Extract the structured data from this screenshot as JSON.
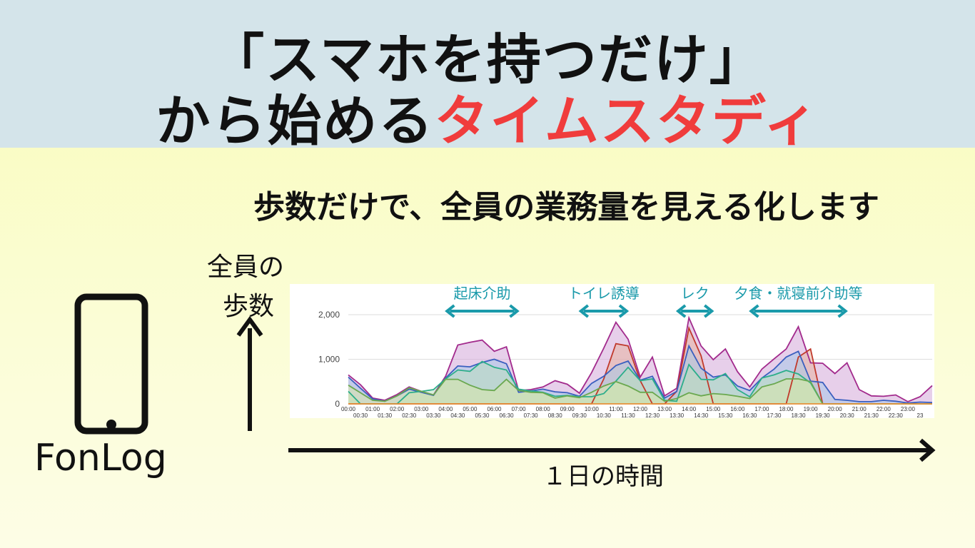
{
  "header": {
    "line1": "「スマホを持つだけ」",
    "line2_prefix": "から始める",
    "line2_accent": "タイムスタディ"
  },
  "subtitle": "歩数だけで、全員の業務量を見える化します",
  "y_axis_label": [
    "全員の",
    "歩数"
  ],
  "x_axis_label": "１日の時間",
  "device_label": "FonLog",
  "colors": {
    "header_bg": "#d4e4ea",
    "accent": "#f03c3c",
    "annotation": "#1a9aaa"
  },
  "annotations": [
    {
      "label": "起床介助",
      "from": "04:00",
      "to": "07:00"
    },
    {
      "label": "トイレ誘導",
      "from": "09:30",
      "to": "11:30"
    },
    {
      "label": "レク",
      "from": "13:30",
      "to": "15:00"
    },
    {
      "label": "夕食・就寝前介助等",
      "from": "16:30",
      "to": "20:30"
    }
  ],
  "chart_data": {
    "type": "area",
    "title": "",
    "xlabel": "１日の時間",
    "ylabel": "全員の歩数",
    "ylim": [
      0,
      2400
    ],
    "yticks": [
      "2,000",
      "1,000",
      "0"
    ],
    "ytick_values": [
      2000,
      1000,
      0
    ],
    "x_top_ticks": [
      "00:00",
      "01:00",
      "02:00",
      "03:00",
      "04:00",
      "05:00",
      "06:00",
      "07:00",
      "08:00",
      "09:00",
      "10:00",
      "11:00",
      "12:00",
      "13:00",
      "14:00",
      "15:00",
      "16:00",
      "17:00",
      "18:00",
      "19:00",
      "20:00",
      "21:00",
      "22:00",
      "23:00"
    ],
    "x_bottom_ticks": [
      "00:30",
      "01:30",
      "02:30",
      "03:30",
      "04:30",
      "05:30",
      "06:30",
      "07:30",
      "08:30",
      "09:30",
      "10:30",
      "11:30",
      "12:30",
      "13:30",
      "14:30",
      "15:30",
      "16:30",
      "17:30",
      "18:30",
      "19:30",
      "20:30",
      "21:30",
      "22:30",
      "23"
    ],
    "grid": true,
    "series": [
      {
        "color": "#a22a8c",
        "fill": "#d4a8d8",
        "values": [
          650,
          430,
          130,
          80,
          210,
          380,
          280,
          200,
          620,
          1320,
          1380,
          1430,
          1180,
          1280,
          300,
          320,
          380,
          520,
          440,
          240,
          700,
          1250,
          1830,
          1450,
          600,
          1050,
          180,
          350,
          1930,
          1300,
          990,
          1230,
          720,
          380,
          780,
          1010,
          1230,
          1730,
          920,
          910,
          680,
          920,
          320,
          180,
          170,
          200,
          50,
          160,
          410
        ]
      },
      {
        "color": "#c0392b",
        "fill": "#e8b4a0",
        "values": [
          0,
          0,
          0,
          0,
          0,
          0,
          0,
          0,
          0,
          0,
          0,
          0,
          0,
          0,
          0,
          0,
          0,
          0,
          0,
          0,
          0,
          560,
          1350,
          1300,
          520,
          0,
          0,
          280,
          1700,
          1080,
          0,
          0,
          0,
          0,
          0,
          0,
          0,
          1050,
          1230,
          0,
          0,
          0,
          0,
          0,
          0,
          0,
          0,
          0,
          0
        ]
      },
      {
        "color": "#3a5fbf",
        "fill": "#a8c8e8",
        "values": [
          600,
          350,
          110,
          60,
          180,
          330,
          260,
          190,
          580,
          850,
          830,
          930,
          1000,
          900,
          260,
          290,
          330,
          270,
          250,
          170,
          460,
          620,
          860,
          960,
          530,
          620,
          130,
          280,
          1300,
          800,
          600,
          650,
          400,
          300,
          580,
          780,
          1050,
          1180,
          510,
          480,
          100,
          80,
          50,
          50,
          80,
          60,
          20,
          40,
          30
        ]
      },
      {
        "color": "#2cae8a",
        "fill": "#b8e0c0",
        "values": [
          280,
          0,
          0,
          0,
          0,
          250,
          280,
          320,
          560,
          760,
          730,
          950,
          820,
          760,
          330,
          290,
          260,
          170,
          190,
          160,
          160,
          230,
          510,
          820,
          520,
          560,
          80,
          60,
          880,
          550,
          540,
          680,
          320,
          160,
          580,
          650,
          750,
          670,
          470,
          0,
          0,
          0,
          0,
          0,
          0,
          0,
          0,
          0,
          0
        ]
      },
      {
        "color": "#6aa84f",
        "fill": "#d8e8a8",
        "values": [
          420,
          250,
          80,
          60,
          180,
          360,
          280,
          200,
          550,
          550,
          420,
          320,
          300,
          550,
          300,
          260,
          250,
          130,
          180,
          140,
          260,
          400,
          500,
          400,
          260,
          260,
          60,
          120,
          250,
          180,
          230,
          210,
          170,
          120,
          380,
          450,
          560,
          560,
          500,
          0,
          0,
          0,
          0,
          0,
          0,
          0,
          0,
          0,
          0
        ]
      },
      {
        "color": "#e69138",
        "fill": "#f8d8a0",
        "values": [
          0,
          0,
          0,
          0,
          0,
          0,
          0,
          0,
          0,
          0,
          0,
          0,
          0,
          0,
          0,
          0,
          0,
          0,
          0,
          0,
          0,
          0,
          0,
          0,
          0,
          0,
          0,
          0,
          0,
          0,
          0,
          0,
          0,
          0,
          0,
          0,
          0,
          0,
          0,
          0,
          0,
          0,
          0,
          0,
          0,
          0,
          0,
          0,
          0
        ]
      }
    ]
  }
}
